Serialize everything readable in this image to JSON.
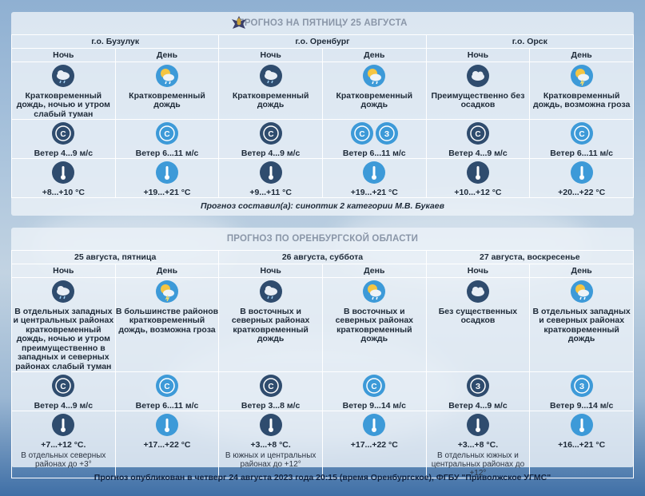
{
  "panel1": {
    "title": "ПРОГНОЗ НА ПЯТНИЦУ 25 АВГУСТА",
    "cities": [
      "г.о. Бузулук",
      "г.о. Оренбург",
      "г.о. Орск"
    ],
    "periods": [
      "Ночь",
      "День",
      "Ночь",
      "День",
      "Ночь",
      "День"
    ],
    "cells": [
      {
        "icon": "cloud-rain-night-icon",
        "desc": "Кратковременный дождь, ночью и утром слабый туман",
        "wind": "Ветер 4...9 м/с",
        "temp": "+8...+10 °С"
      },
      {
        "icon": "sun-cloud-rain-icon",
        "desc": "Кратковременный дождь",
        "wind": "Ветер 6...11 м/с",
        "temp": "+19...+21 °С"
      },
      {
        "icon": "cloud-rain-night-icon",
        "desc": "Кратковременный дождь",
        "wind": "Ветер 4...9 м/с",
        "temp": "+9...+11 °С"
      },
      {
        "icon": "sun-cloud-rain-icon",
        "desc": "Кратковременный дождь",
        "wind": "Ветер 6...11 м/с",
        "temp": "+19...+21 °С"
      },
      {
        "icon": "cloud-night-icon",
        "desc": "Преимущественно без осадков",
        "wind": "Ветер 4...9 м/с",
        "temp": "+10...+12 °С"
      },
      {
        "icon": "sun-cloud-storm-icon",
        "desc": "Кратковременный дождь, возможна гроза",
        "wind": "Ветер 6...11 м/с",
        "temp": "+20...+22 °С"
      }
    ],
    "author": "Прогноз составил(а): синоптик 2 категории М.В. Букаев"
  },
  "panel2": {
    "title": "ПРОГНОЗ ПО ОРЕНБУРГСКОЙ ОБЛАСТИ",
    "dates": [
      "25 августа, пятница",
      "26 августа, суббота",
      "27 августа, воскресенье"
    ],
    "periods": [
      "Ночь",
      "День",
      "Ночь",
      "День",
      "Ночь",
      "День"
    ],
    "cells": [
      {
        "icon": "cloud-rain-night-icon",
        "desc": "В отдельных западных и центральных районах кратковременный дождь, ночью и утром преимущественно в западных и северных районах слабый туман",
        "wind": "Ветер 4...9 м/с",
        "temp": "+7...+12 °С.",
        "note": "В отдельных северных районах до +3°"
      },
      {
        "icon": "sun-cloud-storm-icon",
        "desc": "В большинстве районов кратковременный дождь, возможна гроза",
        "wind": "Ветер 6...11 м/с",
        "temp": "+17...+22 °С",
        "note": ""
      },
      {
        "icon": "cloud-rain-night-icon",
        "desc": "В восточных и северных районах кратковременный дождь",
        "wind": "Ветер 3...8 м/с",
        "temp": "+3...+8 °С.",
        "note": "В южных и центральных районах до +12°"
      },
      {
        "icon": "sun-cloud-rain-icon",
        "desc": "В восточных и северных районах кратковременный дождь",
        "wind": "Ветер 9...14 м/с",
        "temp": "+17...+22 °С",
        "note": ""
      },
      {
        "icon": "cloud-night-icon",
        "desc": "Без существенных осадков",
        "wind": "Ветер 4...9 м/с",
        "temp": "+3...+8 °С.",
        "note": "В отдельных южных и центральных районах до +12°"
      },
      {
        "icon": "sun-cloud-rain-icon",
        "desc": "В отдельных западных и северных районах кратковременный дождь",
        "wind": "Ветер 9...14 м/с",
        "temp": "+16...+21 °С",
        "note": ""
      }
    ]
  },
  "footer": "Прогноз опубликован в четверг 24 августа 2023 года 20:15 (время Оренбургское), ФГБУ \"Приволжское УГМС\"",
  "colors": {
    "night_icon": "#2f4c6e",
    "day_icon": "#3d9ad8",
    "title": "#8a96a8"
  }
}
